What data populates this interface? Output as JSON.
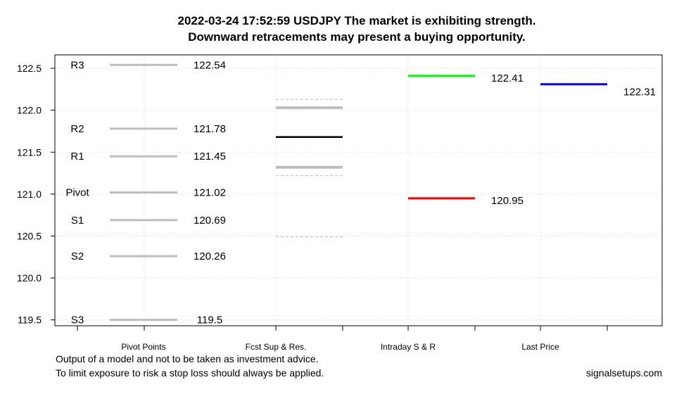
{
  "chart_data": {
    "type": "line",
    "title_line1": "2022-03-24 17:52:59 USDJPY The market is exhibiting strength.",
    "title_line2": "Downward retracements  may present a buying opportunity.",
    "xlabel": "",
    "ylabel": "",
    "ylim": [
      119.43,
      122.66
    ],
    "y_ticks": [
      {
        "value": 119.5,
        "label": "119.5"
      },
      {
        "value": 120.0,
        "label": "120.0"
      },
      {
        "value": 120.5,
        "label": "120.5"
      },
      {
        "value": 121.0,
        "label": "121.0"
      },
      {
        "value": 121.5,
        "label": "121.5"
      },
      {
        "value": 122.0,
        "label": "122.0"
      },
      {
        "value": 122.5,
        "label": "122.5"
      }
    ],
    "grid": true,
    "categories": [
      "Pivot Points",
      "Fcst Sup & Res.",
      "Intraday S & R",
      "Last Price"
    ],
    "pivot_points": [
      {
        "name": "R3",
        "value": 122.54,
        "label": "122.54"
      },
      {
        "name": "R2",
        "value": 121.78,
        "label": "121.78"
      },
      {
        "name": "R1",
        "value": 121.45,
        "label": "121.45"
      },
      {
        "name": "Pivot",
        "value": 121.02,
        "label": "121.02"
      },
      {
        "name": "S1",
        "value": 120.69,
        "label": "120.69"
      },
      {
        "name": "S2",
        "value": 120.26,
        "label": "120.26"
      },
      {
        "name": "S3",
        "value": 119.5,
        "label": "119.5"
      }
    ],
    "forecast": {
      "center": 121.68,
      "upper": 122.03,
      "lower": 121.32,
      "upper_band": 122.13,
      "lower_band_inner": 121.22,
      "lower_band_outer": 120.49
    },
    "intraday": [
      {
        "value": 122.41,
        "label": "122.41",
        "color": "#00ff00"
      },
      {
        "value": 120.95,
        "label": "120.95",
        "color": "#ff0000"
      }
    ],
    "last_price": {
      "value": 122.31,
      "label": "122.31",
      "color": "#0000ff"
    },
    "colors": {
      "pivot": "#bebebe",
      "band": "#bebebe",
      "center": "#000000",
      "grid": "#d3d3d3"
    }
  },
  "footer": {
    "line1": "Output of a model and not to be taken as investment advice.",
    "line2": "To limit exposure to risk a stop loss should always be applied.",
    "site": "signalsetups.com"
  }
}
